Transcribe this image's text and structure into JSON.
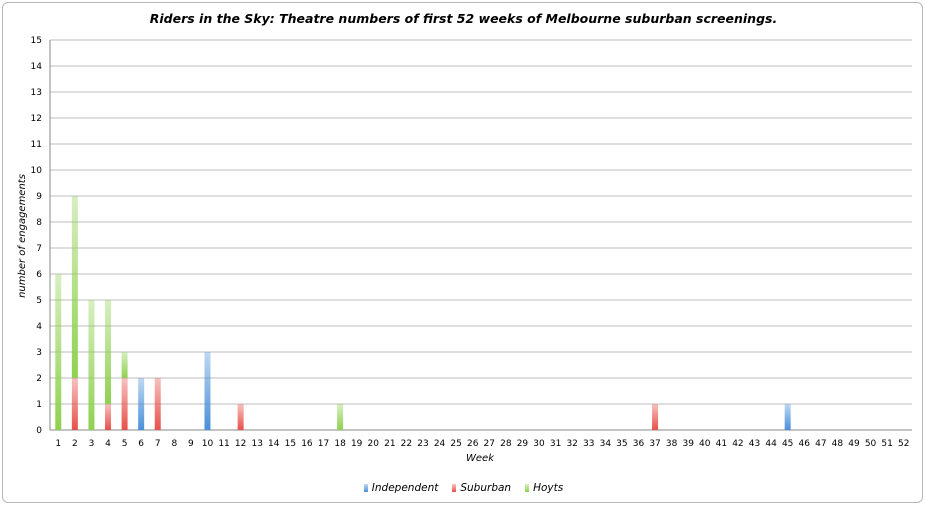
{
  "chart_data": {
    "type": "bar",
    "stacked": true,
    "title": "Riders in the Sky: Theatre numbers of first 52 weeks of Melbourne suburban screenings.",
    "xlabel": "Week",
    "ylabel": "number of engagements",
    "ylim": [
      0,
      15
    ],
    "yticks": [
      "0",
      "1",
      "2",
      "3",
      "4",
      "5",
      "6",
      "7",
      "8",
      "9",
      "10",
      "11",
      "12",
      "13",
      "14",
      "15"
    ],
    "categories": [
      "1",
      "2",
      "3",
      "4",
      "5",
      "6",
      "7",
      "8",
      "9",
      "10",
      "11",
      "12",
      "13",
      "14",
      "15",
      "16",
      "17",
      "18",
      "19",
      "20",
      "21",
      "22",
      "23",
      "24",
      "25",
      "26",
      "27",
      "28",
      "29",
      "30",
      "31",
      "32",
      "33",
      "34",
      "35",
      "36",
      "37",
      "38",
      "39",
      "40",
      "41",
      "42",
      "43",
      "44",
      "45",
      "46",
      "47",
      "48",
      "49",
      "50",
      "51",
      "52"
    ],
    "series": [
      {
        "name": "Independent",
        "color": "#4a90d9",
        "values": [
          0,
          0,
          0,
          0,
          0,
          2,
          0,
          0,
          0,
          3,
          0,
          0,
          0,
          0,
          0,
          0,
          0,
          0,
          0,
          0,
          0,
          0,
          0,
          0,
          0,
          0,
          0,
          0,
          0,
          0,
          0,
          0,
          0,
          0,
          0,
          0,
          0,
          0,
          0,
          0,
          0,
          0,
          0,
          0,
          1,
          0,
          0,
          0,
          0,
          0,
          0,
          0
        ]
      },
      {
        "name": "Suburban",
        "color": "#e8504a",
        "values": [
          0,
          2,
          0,
          1,
          2,
          0,
          2,
          0,
          0,
          0,
          0,
          1,
          0,
          0,
          0,
          0,
          0,
          0,
          0,
          0,
          0,
          0,
          0,
          0,
          0,
          0,
          0,
          0,
          0,
          0,
          0,
          0,
          0,
          0,
          0,
          0,
          1,
          0,
          0,
          0,
          0,
          0,
          0,
          0,
          0,
          0,
          0,
          0,
          0,
          0,
          0,
          0
        ]
      },
      {
        "name": "Hoyts",
        "color": "#8fd14f",
        "values": [
          6,
          7,
          5,
          4,
          1,
          0,
          0,
          0,
          0,
          0,
          0,
          0,
          0,
          0,
          0,
          0,
          0,
          1,
          0,
          0,
          0,
          0,
          0,
          0,
          0,
          0,
          0,
          0,
          0,
          0,
          0,
          0,
          0,
          0,
          0,
          0,
          0,
          0,
          0,
          0,
          0,
          0,
          0,
          0,
          0,
          0,
          0,
          0,
          0,
          0,
          0,
          0
        ]
      }
    ],
    "grid": true,
    "legend_position": "bottom"
  }
}
